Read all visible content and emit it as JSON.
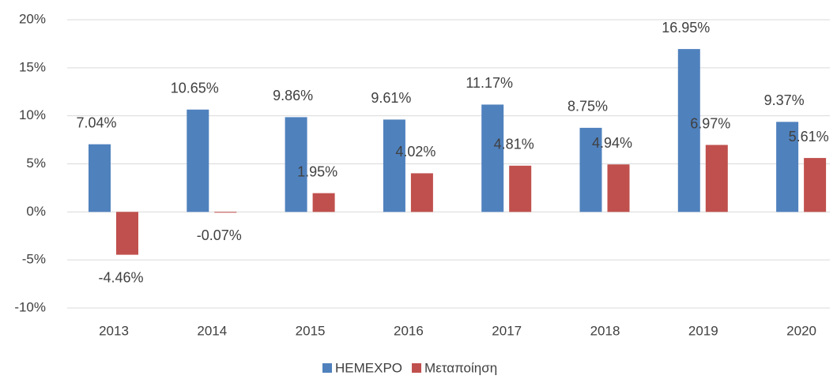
{
  "chart_data": {
    "type": "bar",
    "categories": [
      "2013",
      "2014",
      "2015",
      "2016",
      "2017",
      "2018",
      "2019",
      "2020"
    ],
    "series": [
      {
        "name": "HEMEXPO",
        "color": "#4f81bd",
        "values": [
          7.04,
          10.65,
          9.86,
          9.61,
          11.17,
          8.75,
          16.95,
          9.37
        ],
        "value_labels": [
          "7.04%",
          "10.65%",
          "9.86%",
          "9.61%",
          "11.17%",
          "8.75%",
          "16.95%",
          "9.37%"
        ]
      },
      {
        "name": "Μεταποίηση",
        "color": "#c0504d",
        "values": [
          -4.46,
          -0.07,
          1.95,
          4.02,
          4.81,
          4.94,
          6.97,
          5.61
        ],
        "value_labels": [
          "-4.46%",
          "-0.07%",
          "1.95%",
          "4.02%",
          "4.81%",
          "4.94%",
          "6.97%",
          "5.61%"
        ]
      }
    ],
    "ylim": [
      -10,
      20
    ],
    "yticks": [
      {
        "value": -10,
        "label": "-10%"
      },
      {
        "value": -5,
        "label": "-5%"
      },
      {
        "value": 0,
        "label": "0%"
      },
      {
        "value": 5,
        "label": "5%"
      },
      {
        "value": 10,
        "label": "10%"
      },
      {
        "value": 15,
        "label": "15%"
      },
      {
        "value": 20,
        "label": "20%"
      }
    ],
    "grid": true,
    "legend": "bottom"
  }
}
